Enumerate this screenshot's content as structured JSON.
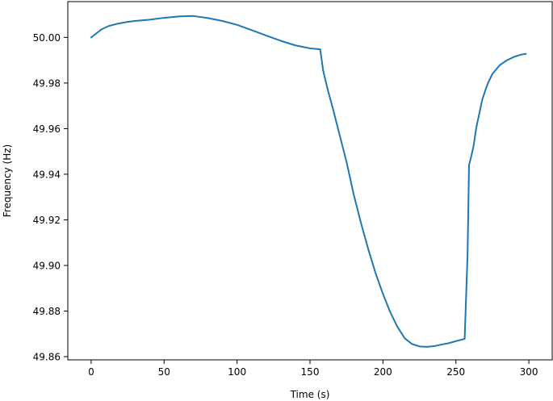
{
  "chart_data": {
    "type": "line",
    "title": "",
    "xlabel": "Time (s)",
    "ylabel": "Frequency (Hz)",
    "xlim": [
      -16,
      316
    ],
    "ylim": [
      49.8586,
      50.0157
    ],
    "xticks": [
      0,
      50,
      100,
      150,
      200,
      250,
      300
    ],
    "xtick_labels": [
      "0",
      "50",
      "100",
      "150",
      "200",
      "250",
      "300"
    ],
    "yticks": [
      49.86,
      49.88,
      49.9,
      49.92,
      49.94,
      49.96,
      49.98,
      50.0
    ],
    "ytick_labels": [
      "49.86",
      "49.88",
      "49.90",
      "49.92",
      "49.94",
      "49.96",
      "49.98",
      "50.00"
    ],
    "grid": false,
    "legend": "none",
    "series": [
      {
        "color": "#1f77b4",
        "x": [
          0,
          3,
          7,
          12,
          18,
          25,
          30,
          40,
          50,
          60,
          70,
          80,
          90,
          100,
          110,
          120,
          130,
          140,
          150,
          157,
          159,
          162,
          166,
          170,
          175,
          180,
          185,
          190,
          195,
          200,
          205,
          210,
          215,
          220,
          225,
          230,
          235,
          240,
          245,
          250,
          256,
          258,
          259,
          260,
          262,
          264,
          266,
          268,
          270,
          272,
          275,
          280,
          285,
          290,
          295,
          298
        ],
        "y": [
          50.0,
          50.0015,
          50.0035,
          50.005,
          50.006,
          50.0068,
          50.0072,
          50.0078,
          50.0086,
          50.0092,
          50.0094,
          50.0085,
          50.0072,
          50.0055,
          50.0032,
          50.0008,
          49.9985,
          49.9965,
          49.9952,
          49.9948,
          49.9855,
          49.9775,
          49.968,
          49.958,
          49.9455,
          49.931,
          49.9185,
          49.907,
          49.8965,
          49.8875,
          49.8795,
          49.873,
          49.868,
          49.8655,
          49.8645,
          49.8643,
          49.8646,
          49.8653,
          49.8659,
          49.8668,
          49.8678,
          49.905,
          49.944,
          49.9465,
          49.952,
          49.9605,
          49.9665,
          49.9725,
          49.9765,
          49.98,
          49.984,
          49.9878,
          49.99,
          49.9915,
          49.9925,
          49.9928
        ]
      }
    ]
  }
}
